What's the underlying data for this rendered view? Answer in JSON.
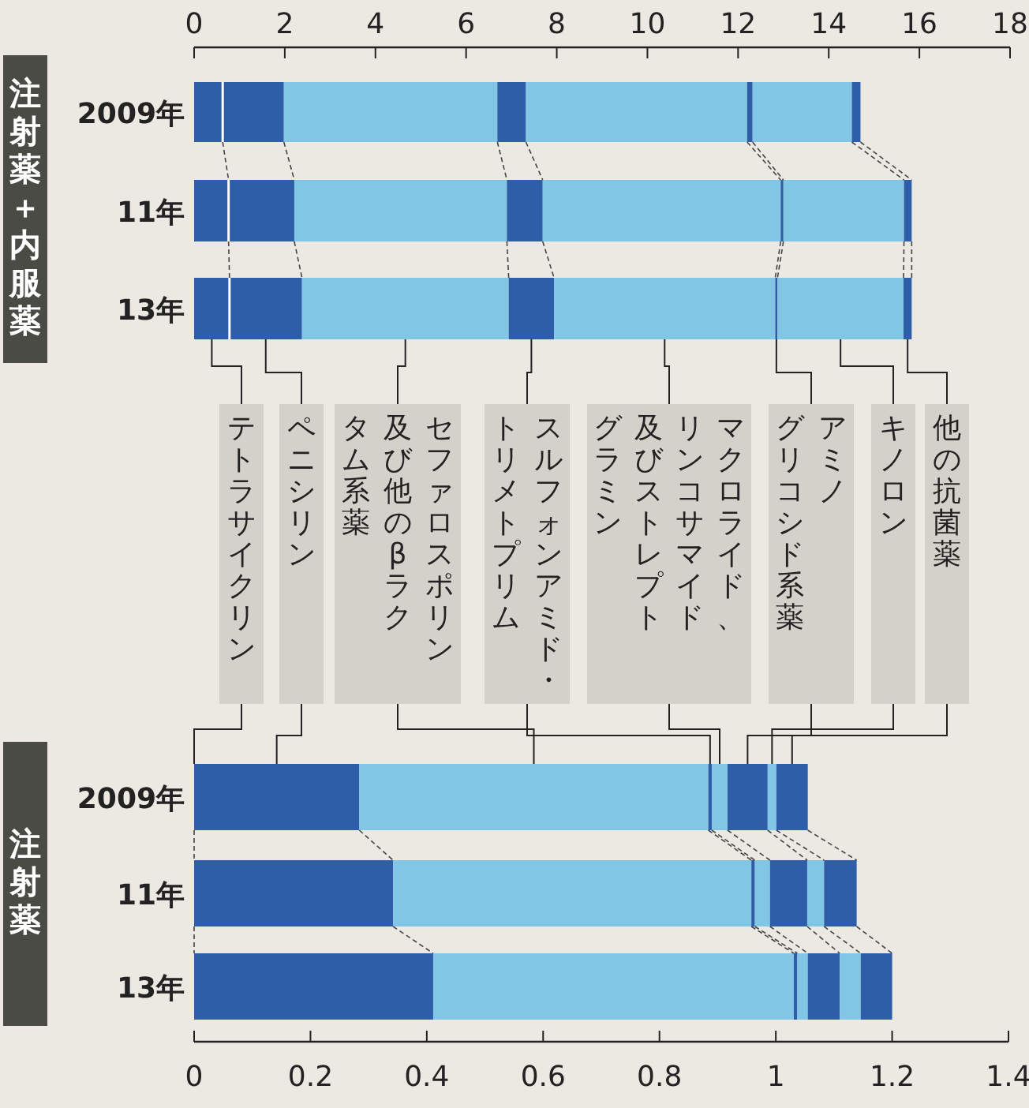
{
  "chart_data": [
    {
      "type": "bar",
      "orientation": "horizontal",
      "stacked": true,
      "title": "注射薬＋内服薬",
      "categories": [
        "2009年",
        "11年",
        "13年"
      ],
      "xlim": [
        0,
        18
      ],
      "xticks": [
        0,
        2,
        4,
        6,
        8,
        10,
        12,
        14,
        16,
        18
      ],
      "series": [
        {
          "name": "テトラサイクリン",
          "color": "#2f5ea8",
          "values": [
            0.63,
            0.76,
            0.78
          ]
        },
        {
          "name": "ペニシリン",
          "color": "#2f5ea8",
          "values": [
            1.35,
            1.45,
            1.6
          ]
        },
        {
          "name": "セファロスポリン及び他のβラクタム系薬",
          "color": "#82c6e6",
          "values": [
            4.71,
            4.69,
            4.56
          ]
        },
        {
          "name": "スルフォンアミド・トリメトプリム",
          "color": "#2f5ea8",
          "values": [
            0.63,
            0.79,
            1.0
          ]
        },
        {
          "name": "マクロライド、リンコサマイド及びストレプトグラミン",
          "color": "#82c6e6",
          "values": [
            4.88,
            5.25,
            4.88
          ]
        },
        {
          "name": "アミノグリコシド系薬",
          "color": "#2f5ea8",
          "values": [
            0.12,
            0.06,
            0.05
          ]
        },
        {
          "name": "キノロン",
          "color": "#82c6e6",
          "values": [
            2.19,
            2.66,
            2.78
          ]
        },
        {
          "name": "他の抗菌薬",
          "color": "#2f5ea8",
          "values": [
            0.19,
            0.17,
            0.18
          ]
        }
      ]
    },
    {
      "type": "bar",
      "orientation": "horizontal",
      "stacked": true,
      "title": "注射薬",
      "categories": [
        "2009年",
        "11年",
        "13年"
      ],
      "xlim": [
        0,
        1.4
      ],
      "xticks": [
        0,
        0.2,
        0.4,
        0.6,
        0.8,
        1,
        1.2,
        1.4
      ],
      "series": [
        {
          "color": "#2f5ea8",
          "values": [
            0,
            0,
            0
          ]
        },
        {
          "color": "#2f5ea8",
          "values": [
            0.284,
            0.342,
            0.411
          ]
        },
        {
          "color": "#82c6e6",
          "values": [
            0.6,
            0.616,
            0.62
          ]
        },
        {
          "color": "#2f5ea8",
          "values": [
            0.006,
            0.006,
            0.006
          ]
        },
        {
          "color": "#82c6e6",
          "values": [
            0.027,
            0.026,
            0.018
          ]
        },
        {
          "color": "#2f5ea8",
          "values": [
            0.069,
            0.064,
            0.055
          ]
        },
        {
          "color": "#82c6e6",
          "values": [
            0.015,
            0.029,
            0.036
          ]
        },
        {
          "color": "#2f5ea8",
          "values": [
            0.054,
            0.056,
            0.054
          ]
        }
      ]
    }
  ]
}
